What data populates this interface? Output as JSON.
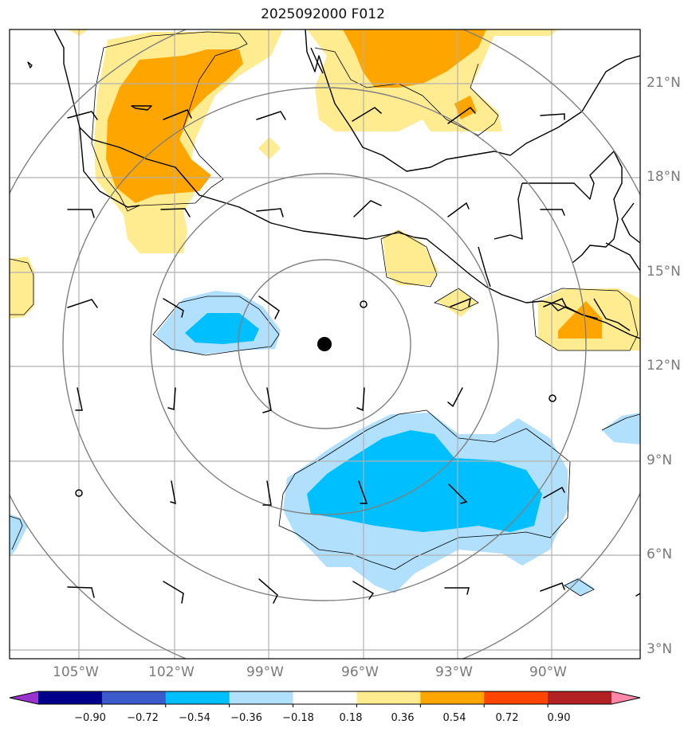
{
  "title": "2025092000 F012",
  "colors": {
    "pos_018_036": "#ffeb90",
    "pos_036_054": "#ffa500",
    "neg_036_018": "#b0e0fb",
    "neg_054_036": "#00bfff",
    "grid": "#b0b0b0",
    "range_ring": "#808080",
    "coast": "#000000",
    "center_marker": "#000000"
  },
  "map": {
    "lon_labels": [
      "105°W",
      "102°W",
      "99°W",
      "96°W",
      "93°W",
      "90°W"
    ],
    "lat_labels": [
      "21°N",
      "18°N",
      "15°N",
      "12°N",
      "9°N",
      "6°N",
      "3°N"
    ],
    "center_marker": {
      "lon": -97.2,
      "lat": 12.7
    }
  },
  "colorbar": {
    "ticks": [
      "−0.90",
      "−0.72",
      "−0.54",
      "−0.36",
      "−0.18",
      "0.18",
      "0.36",
      "0.54",
      "0.72",
      "0.90"
    ],
    "colors": [
      "#9a32cd",
      "#00008b",
      "#3b5bcc",
      "#00bfff",
      "#b0e0fb",
      "#ffffff",
      "#ffeb90",
      "#ffa500",
      "#ff4500",
      "#b22222",
      "#ff88aa"
    ]
  }
}
